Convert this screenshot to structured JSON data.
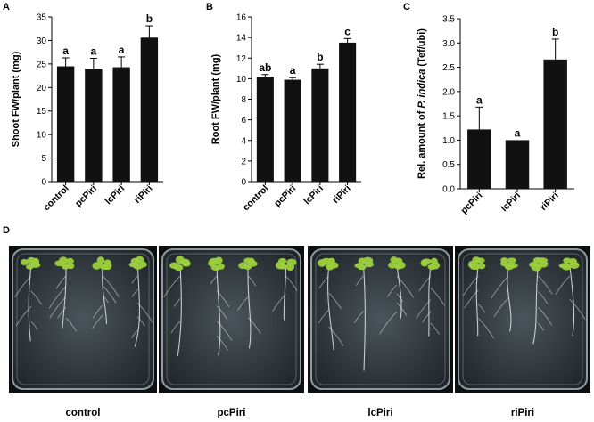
{
  "chart_data": [
    {
      "panel": "A",
      "type": "bar",
      "categories": [
        "control",
        "pcPiri",
        "lcPiri",
        "riPiri"
      ],
      "values": [
        24.5,
        24.0,
        24.3,
        30.6
      ],
      "errors": [
        1.8,
        2.2,
        2.2,
        2.5
      ],
      "significance": [
        "a",
        "a",
        "a",
        "b"
      ],
      "ylabel": "Shoot FW/plant (mg)",
      "ylim": [
        0,
        35
      ],
      "yticks": [
        0,
        5,
        10,
        15,
        20,
        25,
        30,
        35
      ],
      "ytick_labels": [
        "0",
        "5",
        "10",
        "15",
        "20",
        "25",
        "30",
        "35"
      ],
      "bar_color": "#111111",
      "grid": false
    },
    {
      "panel": "B",
      "type": "bar",
      "categories": [
        "control",
        "pcPiri",
        "lcPiri",
        "riPiri"
      ],
      "values": [
        10.2,
        9.9,
        11.0,
        13.5
      ],
      "errors": [
        0.2,
        0.2,
        0.4,
        0.4
      ],
      "significance": [
        "ab",
        "a",
        "b",
        "c"
      ],
      "ylabel": "Root FW/plant (mg)",
      "ylim": [
        0,
        16
      ],
      "yticks": [
        0,
        2,
        4,
        6,
        8,
        10,
        12,
        14,
        16
      ],
      "ytick_labels": [
        "0",
        "2",
        "4",
        "6",
        "8",
        "10",
        "12",
        "14",
        "16"
      ],
      "bar_color": "#111111",
      "grid": false
    },
    {
      "panel": "C",
      "type": "bar",
      "categories": [
        "pcPiri",
        "lcPiri",
        "riPiri"
      ],
      "values": [
        1.22,
        1.0,
        2.66
      ],
      "errors": [
        0.46,
        0.0,
        0.42
      ],
      "significance": [
        "a",
        "a",
        "b"
      ],
      "ylabel_prefix": "Rel. amount of ",
      "ylabel_italic": "P. indica",
      "ylabel_suffix": " (Tef/ubi)",
      "ylim": [
        0,
        3.5
      ],
      "yticks": [
        0,
        0.5,
        1.0,
        1.5,
        2.0,
        2.5,
        3.0,
        3.5
      ],
      "ytick_labels": [
        "0.0",
        "0.5",
        "1.0",
        "1.5",
        "2.0",
        "2.5",
        "3.0",
        "3.5"
      ],
      "bar_color": "#111111",
      "grid": false
    }
  ],
  "photos": {
    "panel": "D",
    "captions": [
      "control",
      "pcPiri",
      "lcPiri",
      "riPiri"
    ],
    "colors": {
      "plate_bg": "#2b3338",
      "plate_edge": "#8e9aa0",
      "leaf": "#9bcf3c",
      "root": "#dfe6ea"
    }
  }
}
